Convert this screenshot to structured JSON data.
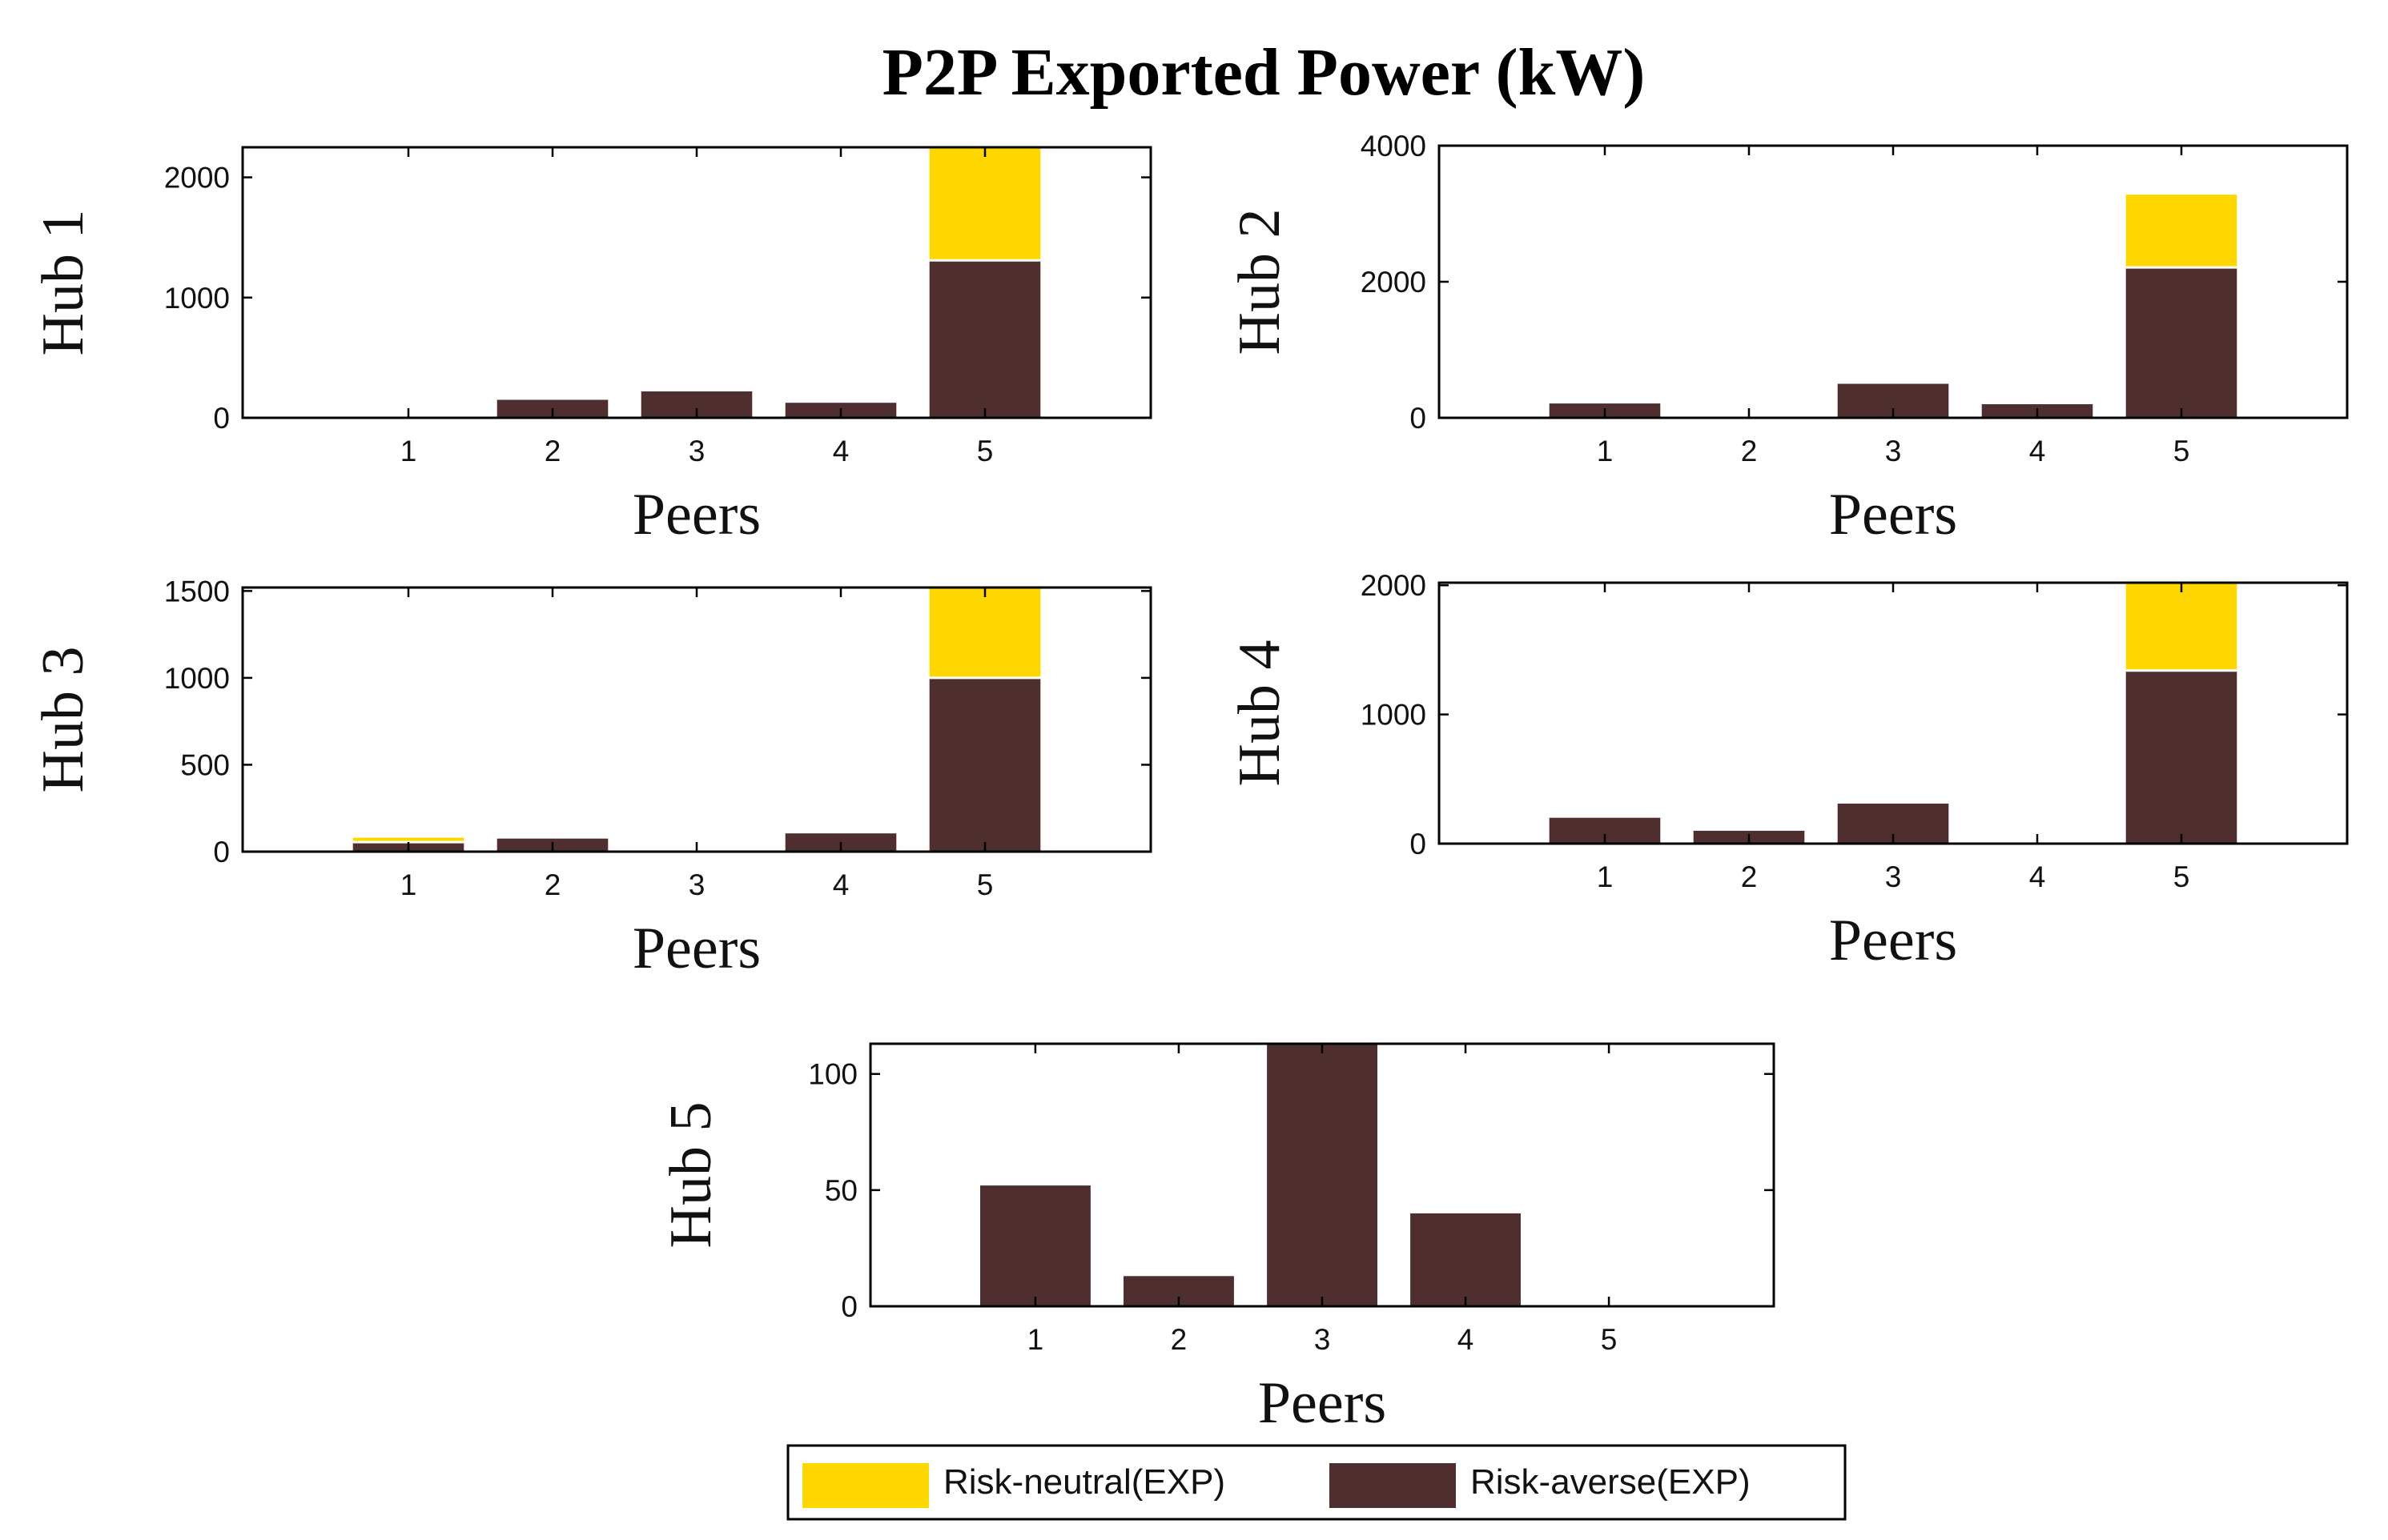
{
  "figure_title": "P2P Exported Power (kW)",
  "colors": {
    "risk_neutral": "#FFD700",
    "risk_averse": "#4F2E2F",
    "frame": "#000000",
    "segment_divider": "#FFFFFF"
  },
  "legend": {
    "items": [
      {
        "label": "Risk-neutral(EXP)",
        "color_key": "risk_neutral"
      },
      {
        "label": "Risk-averse(EXP)",
        "color_key": "risk_averse"
      }
    ]
  },
  "chart_data": [
    {
      "type": "bar",
      "stacked": true,
      "ylabel": "Hub 1",
      "xlabel": "Peers",
      "categories": [
        "1",
        "2",
        "3",
        "4",
        "5"
      ],
      "ylim": [
        0,
        2250
      ],
      "yticks": [
        0,
        1000,
        2000
      ],
      "xlim": [
        -0.15,
        6.15
      ],
      "series": [
        {
          "name": "Risk-averse(EXP)",
          "color_key": "risk_averse",
          "values": [
            0,
            150,
            220,
            125,
            1310
          ]
        },
        {
          "name": "Risk-neutral(EXP)",
          "color_key": "risk_neutral",
          "values": [
            0,
            0,
            0,
            0,
            940
          ]
        }
      ]
    },
    {
      "type": "bar",
      "stacked": true,
      "ylabel": "Hub 2",
      "xlabel": "Peers",
      "categories": [
        "1",
        "2",
        "3",
        "4",
        "5"
      ],
      "ylim": [
        0,
        4000
      ],
      "yticks": [
        0,
        2000,
        4000
      ],
      "xlim": [
        -0.15,
        6.15
      ],
      "series": [
        {
          "name": "Risk-averse(EXP)",
          "color_key": "risk_averse",
          "values": [
            210,
            0,
            500,
            200,
            2210
          ]
        },
        {
          "name": "Risk-neutral(EXP)",
          "color_key": "risk_neutral",
          "values": [
            0,
            0,
            0,
            0,
            1070
          ]
        }
      ]
    },
    {
      "type": "bar",
      "stacked": true,
      "ylabel": "Hub 3",
      "xlabel": "Peers",
      "categories": [
        "1",
        "2",
        "3",
        "4",
        "5"
      ],
      "ylim": [
        0,
        1520
      ],
      "yticks": [
        0,
        500,
        1000,
        1500
      ],
      "xlim": [
        -0.15,
        6.15
      ],
      "series": [
        {
          "name": "Risk-averse(EXP)",
          "color_key": "risk_averse",
          "values": [
            55,
            75,
            0,
            105,
            1000
          ]
        },
        {
          "name": "Risk-neutral(EXP)",
          "color_key": "risk_neutral",
          "values": [
            25,
            0,
            0,
            0,
            520
          ]
        }
      ]
    },
    {
      "type": "bar",
      "stacked": true,
      "ylabel": "Hub 4",
      "xlabel": "Peers",
      "categories": [
        "1",
        "2",
        "3",
        "4",
        "5"
      ],
      "ylim": [
        0,
        2020
      ],
      "yticks": [
        0,
        1000,
        2000
      ],
      "xlim": [
        -0.15,
        6.15
      ],
      "series": [
        {
          "name": "Risk-averse(EXP)",
          "color_key": "risk_averse",
          "values": [
            200,
            100,
            310,
            0,
            1340
          ]
        },
        {
          "name": "Risk-neutral(EXP)",
          "color_key": "risk_neutral",
          "values": [
            0,
            0,
            0,
            0,
            680
          ]
        }
      ]
    },
    {
      "type": "bar",
      "stacked": true,
      "ylabel": "Hub 5",
      "xlabel": "Peers",
      "categories": [
        "1",
        "2",
        "3",
        "4",
        "5"
      ],
      "ylim": [
        0,
        113
      ],
      "yticks": [
        0,
        50,
        100
      ],
      "xlim": [
        -0.15,
        6.15
      ],
      "series": [
        {
          "name": "Risk-averse(EXP)",
          "color_key": "risk_averse",
          "values": [
            52,
            13,
            113,
            40,
            0
          ]
        },
        {
          "name": "Risk-neutral(EXP)",
          "color_key": "risk_neutral",
          "values": [
            0,
            0,
            0,
            0,
            0
          ]
        }
      ]
    }
  ]
}
